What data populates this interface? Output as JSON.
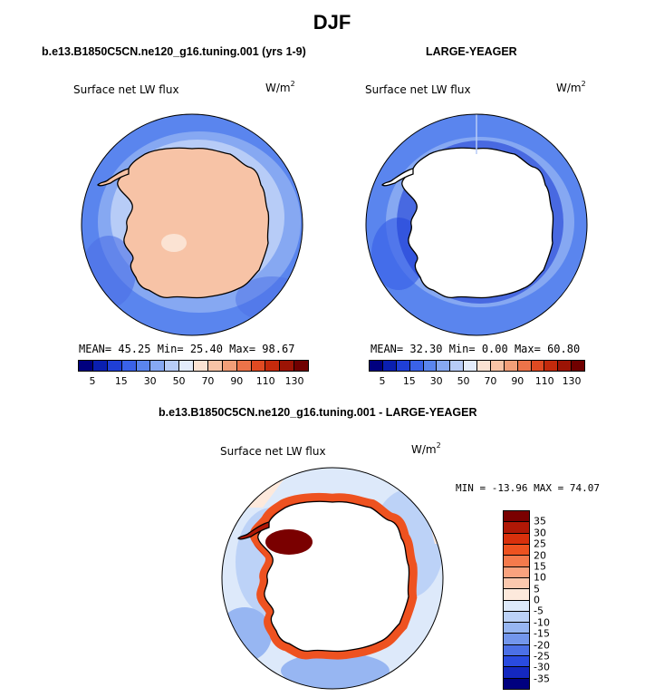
{
  "title": "DJF",
  "panels": {
    "left_title": "b.e13.B1850C5CN.ne120_g16.tuning.001 (yrs 1-9)",
    "right_title": "LARGE-YEAGER",
    "diff_title": "b.e13.B1850C5CN.ne120_g16.tuning.001 - LARGE-YEAGER"
  },
  "variable": "Surface net LW flux",
  "units_base": "W/m",
  "units_exp": "2",
  "left_stats": "MEAN=  45.25  Min=  25.40  Max=  98.67",
  "right_stats": "MEAN=  32.30  Min=   0.00  Max=  60.80",
  "diff_stats": "MIN = -13.96 MAX =  74.07",
  "colorbar_main": {
    "tick_labels": [
      "5",
      "15",
      "30",
      "50",
      "70",
      "90",
      "110",
      "130"
    ],
    "colors": [
      "#00007f",
      "#0a1fb0",
      "#1f3fd6",
      "#3a62e8",
      "#5a85ee",
      "#86a8f2",
      "#b7ccf7",
      "#e3ecfb",
      "#fbe3d3",
      "#f7c3a6",
      "#f29e78",
      "#ec7349",
      "#e04a22",
      "#c42a0c",
      "#9c1405",
      "#700000"
    ]
  },
  "colorbar_diff": {
    "tick_labels": [
      "35",
      "30",
      "25",
      "20",
      "15",
      "10",
      "5",
      "0",
      "-5",
      "-10",
      "-15",
      "-20",
      "-25",
      "-30",
      "-35"
    ],
    "colors": [
      "#7a0000",
      "#b01806",
      "#d9300c",
      "#ee5220",
      "#f57a4c",
      "#f9a27e",
      "#fbc8ae",
      "#fde9dc",
      "#dde9fa",
      "#bcd2f7",
      "#97b6f2",
      "#7396ec",
      "#4c70e6",
      "#2a4be0",
      "#1428c0",
      "#00007f"
    ]
  },
  "chart_data": {
    "type": "heatmap",
    "projection": "south-polar stereographic",
    "panels": [
      {
        "title": "b.e13.B1850C5CN.ne120_g16.tuning.001 (yrs 1-9)",
        "field": "Surface net LW flux",
        "units": "W/m^2",
        "mean": 45.25,
        "min": 25.4,
        "max": 98.67,
        "levels": [
          5,
          15,
          30,
          50,
          70,
          90,
          110,
          130
        ]
      },
      {
        "title": "LARGE-YEAGER",
        "field": "Surface net LW flux",
        "units": "W/m^2",
        "mean": 32.3,
        "min": 0.0,
        "max": 60.8,
        "levels": [
          5,
          15,
          30,
          50,
          70,
          90,
          110,
          130
        ]
      },
      {
        "title": "b.e13.B1850C5CN.ne120_g16.tuning.001 - LARGE-YEAGER",
        "field": "Surface net LW flux",
        "units": "W/m^2",
        "min": -13.96,
        "max": 74.07,
        "levels": [
          -35,
          -30,
          -25,
          -20,
          -15,
          -10,
          -5,
          0,
          5,
          10,
          15,
          20,
          25,
          30,
          35
        ]
      }
    ]
  }
}
